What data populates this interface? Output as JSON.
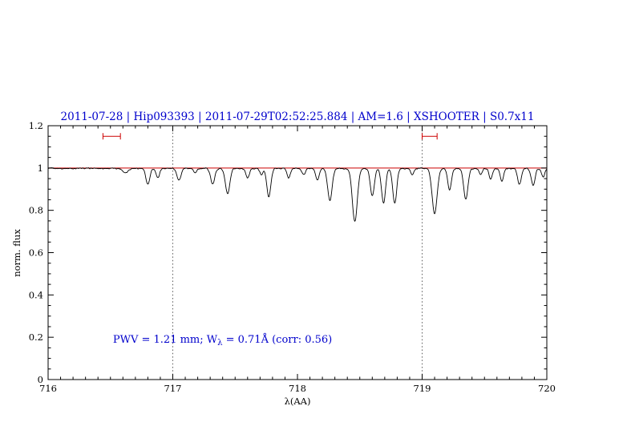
{
  "page": {
    "background": "#ffffff"
  },
  "chart_data": {
    "type": "line",
    "title": "2011-07-28 | Hip093393 | 2011-07-29T02:52:25.884 | AM=1.6 | XSHOOTER | S0.7x11",
    "title_color": "#0000cc",
    "xlabel": "λ(AA)",
    "ylabel": "norm. flux",
    "xlim": [
      716,
      720
    ],
    "ylim": [
      0,
      1.2
    ],
    "x_major_ticks": [
      716,
      717,
      718,
      719,
      720
    ],
    "x_tick_labels": [
      "716",
      "717",
      "718",
      "719",
      "720"
    ],
    "x_minor_step": 0.1,
    "y_major_ticks": [
      0,
      0.2,
      0.4,
      0.6,
      0.8,
      1,
      1.2
    ],
    "y_tick_labels": [
      "0",
      "0.2",
      "0.4",
      "0.6",
      "0.8",
      "1",
      "1.2"
    ],
    "y_minor_step": 0.05,
    "grid": false,
    "legend": "none",
    "continuum_level": 1.0,
    "reference_line": {
      "y": 1.0,
      "color": "#cc0000"
    },
    "vlines": {
      "x": [
        717,
        719
      ],
      "style": "dotted",
      "color": "#333333"
    },
    "range_markers": [
      {
        "x_start": 716.44,
        "x_end": 716.58,
        "y": 1.15,
        "color": "#cc0000"
      },
      {
        "x_start": 719.0,
        "x_end": 719.12,
        "y": 1.15,
        "color": "#cc0000"
      }
    ],
    "annotation": {
      "text_prefix": "PWV = 1.21 mm; W",
      "text_sub": "λ",
      "text_suffix": " = 0.71Å (corr: 0.56)",
      "x": 716.52,
      "y": 0.2,
      "color": "#0000cc"
    },
    "spectrum": {
      "line_color": "#000000",
      "sample_step": 0.004,
      "noise_amplitude": 0.004,
      "absorption_lines": [
        {
          "center": 716.62,
          "depth": 0.02,
          "sigma": 0.02
        },
        {
          "center": 716.8,
          "depth": 0.075,
          "sigma": 0.016
        },
        {
          "center": 716.88,
          "depth": 0.045,
          "sigma": 0.013
        },
        {
          "center": 717.05,
          "depth": 0.055,
          "sigma": 0.016
        },
        {
          "center": 717.18,
          "depth": 0.02,
          "sigma": 0.013
        },
        {
          "center": 717.32,
          "depth": 0.075,
          "sigma": 0.016
        },
        {
          "center": 717.44,
          "depth": 0.12,
          "sigma": 0.018
        },
        {
          "center": 717.6,
          "depth": 0.045,
          "sigma": 0.014
        },
        {
          "center": 717.71,
          "depth": 0.03,
          "sigma": 0.012
        },
        {
          "center": 717.77,
          "depth": 0.135,
          "sigma": 0.016
        },
        {
          "center": 717.93,
          "depth": 0.045,
          "sigma": 0.013
        },
        {
          "center": 718.05,
          "depth": 0.03,
          "sigma": 0.013
        },
        {
          "center": 718.16,
          "depth": 0.055,
          "sigma": 0.014
        },
        {
          "center": 718.26,
          "depth": 0.15,
          "sigma": 0.018
        },
        {
          "center": 718.46,
          "depth": 0.25,
          "sigma": 0.02
        },
        {
          "center": 718.6,
          "depth": 0.13,
          "sigma": 0.016
        },
        {
          "center": 718.69,
          "depth": 0.165,
          "sigma": 0.016
        },
        {
          "center": 718.78,
          "depth": 0.165,
          "sigma": 0.016
        },
        {
          "center": 718.92,
          "depth": 0.03,
          "sigma": 0.013
        },
        {
          "center": 719.1,
          "depth": 0.215,
          "sigma": 0.02
        },
        {
          "center": 719.22,
          "depth": 0.1,
          "sigma": 0.015
        },
        {
          "center": 719.35,
          "depth": 0.145,
          "sigma": 0.017
        },
        {
          "center": 719.47,
          "depth": 0.03,
          "sigma": 0.012
        },
        {
          "center": 719.55,
          "depth": 0.05,
          "sigma": 0.013
        },
        {
          "center": 719.64,
          "depth": 0.06,
          "sigma": 0.013
        },
        {
          "center": 719.78,
          "depth": 0.075,
          "sigma": 0.015
        },
        {
          "center": 719.89,
          "depth": 0.08,
          "sigma": 0.015
        },
        {
          "center": 719.97,
          "depth": 0.04,
          "sigma": 0.013
        }
      ]
    }
  }
}
